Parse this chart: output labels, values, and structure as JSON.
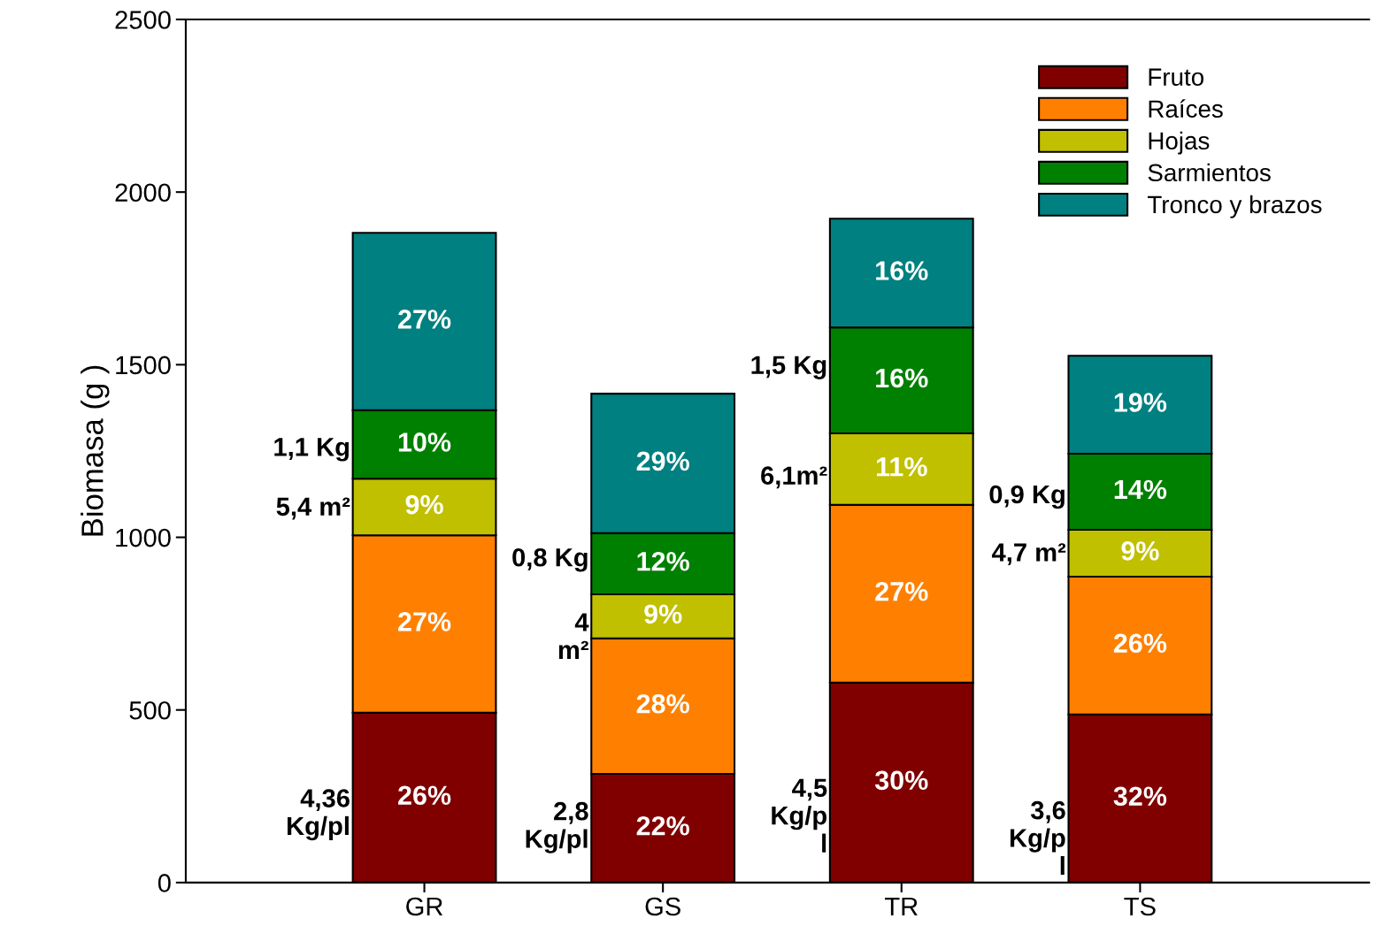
{
  "chart_data": {
    "type": "bar",
    "stacked": true,
    "ylabel": "Biomasa (g )",
    "categories": [
      "GR",
      "GS",
      "TR",
      "TS"
    ],
    "series": [
      {
        "name": "Fruto",
        "color": "#800000",
        "values": [
          492,
          315,
          579,
          487
        ]
      },
      {
        "name": "Raíces",
        "color": "#ff8000",
        "values": [
          514,
          392,
          515,
          399
        ]
      },
      {
        "name": "Hojas",
        "color": "#c0c000",
        "values": [
          164,
          128,
          207,
          136
        ]
      },
      {
        "name": "Sarmientos",
        "color": "#008000",
        "values": [
          198,
          177,
          307,
          220
        ]
      },
      {
        "name": "Tronco y brazos",
        "color": "#008080",
        "values": [
          514,
          404,
          315,
          284
        ]
      }
    ],
    "ylim": [
      0,
      2500
    ],
    "yticks": [
      0,
      500,
      1000,
      1500,
      2000,
      2500
    ],
    "grid": false,
    "legend": "top right",
    "annotations": [
      "4,36\nKg/pl",
      "5,4 m²",
      "1,1 Kg",
      "2,8\nKg/pl",
      "4\nm²",
      "0,8 Kg",
      "4,5\nKg/p\nl",
      "6,1m²",
      "1,5 Kg",
      "3,6\nKg/p\nl",
      "4,7 m²",
      "0,9 Kg",
      "26%",
      "22%",
      "30%",
      "32%",
      "27%",
      "28%",
      "27%",
      "26%",
      "9%",
      "9%",
      "11%",
      "9%",
      "10%",
      "12%",
      "16%",
      "14%",
      "27%",
      "29%",
      "16%",
      "19%"
    ]
  }
}
